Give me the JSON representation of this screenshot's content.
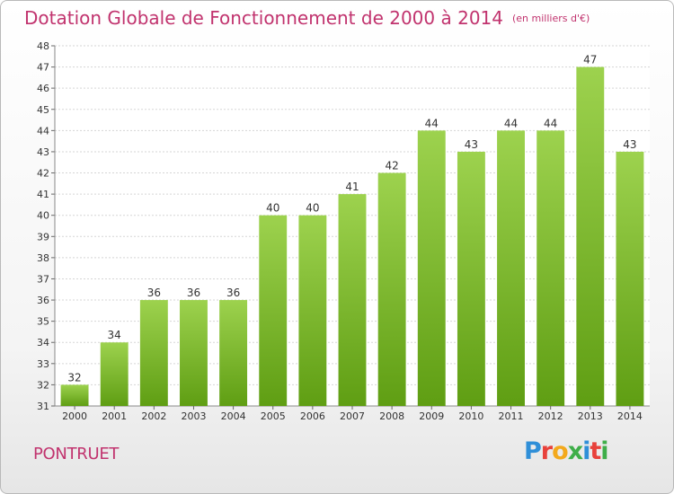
{
  "header": {
    "title": "Dotation Globale de Fonctionnement de 2000 à 2014",
    "unit": "(en milliers d'€)"
  },
  "footer": {
    "town": "PONTRUET",
    "logo_text": "Proxiti"
  },
  "colors": {
    "title": "#c1336e",
    "bar_top": "#9dd24e",
    "bar_bottom": "#5f9e13",
    "grid": "#d5d5d5"
  },
  "chart_data": {
    "type": "bar",
    "title": "Dotation Globale de Fonctionnement de 2000 à 2014",
    "xlabel": "",
    "ylabel": "",
    "categories": [
      "2000",
      "2001",
      "2002",
      "2003",
      "2004",
      "2005",
      "2006",
      "2007",
      "2008",
      "2009",
      "2010",
      "2011",
      "2012",
      "2013",
      "2014"
    ],
    "values": [
      32,
      34,
      36,
      36,
      36,
      40,
      40,
      41,
      42,
      44,
      43,
      44,
      44,
      47,
      43
    ],
    "ylim": [
      31,
      48
    ],
    "yticks": [
      31,
      32,
      33,
      34,
      35,
      36,
      37,
      38,
      39,
      40,
      41,
      42,
      43,
      44,
      45,
      46,
      47,
      48
    ],
    "grid": true,
    "data_labels": true
  }
}
